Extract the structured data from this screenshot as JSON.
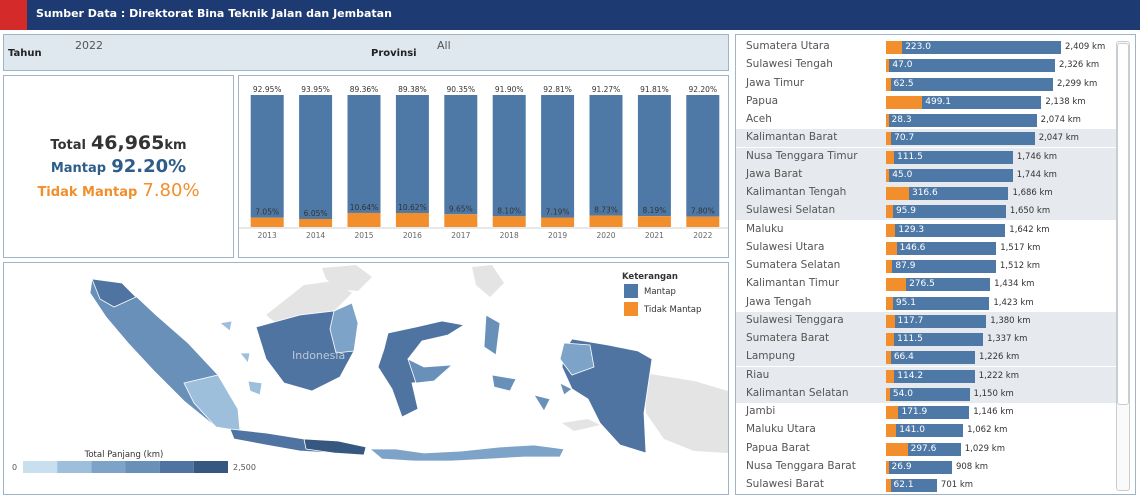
{
  "header": {
    "title": "Sumber Data : Direktorat Bina Teknik Jalan dan Jembatan"
  },
  "filters": {
    "tahun_label": "Tahun",
    "tahun_value": "2022",
    "provinsi_label": "Provinsi",
    "provinsi_value": "All"
  },
  "kpi": {
    "total_label": "Total",
    "total_value": "46,965",
    "total_unit": "km",
    "mantap_label": "Mantap",
    "mantap_value": "92.20%",
    "tidak_label": "Tidak Mantap",
    "tidak_value": "7.80%"
  },
  "colors": {
    "mantap": "#4e79a7",
    "tidak_mantap": "#f28e2b",
    "header": "#1e3a73"
  },
  "chart_data": [
    {
      "type": "bar",
      "categories": [
        "2013",
        "2014",
        "2015",
        "2016",
        "2017",
        "2018",
        "2019",
        "2020",
        "2021",
        "2022"
      ],
      "series": [
        {
          "name": "Mantap",
          "values": [
            92.95,
            93.95,
            89.36,
            89.38,
            90.35,
            91.9,
            92.81,
            91.27,
            91.81,
            92.2
          ],
          "labels": [
            "92.95%",
            "93.95%",
            "89.36%",
            "89.38%",
            "90.35%",
            "91.90%",
            "92.81%",
            "91.27%",
            "91.81%",
            "92.20%"
          ]
        },
        {
          "name": "Tidak Mantap",
          "values": [
            7.05,
            6.05,
            10.64,
            10.62,
            9.65,
            8.1,
            7.19,
            8.73,
            8.19,
            7.8
          ],
          "labels": [
            "7.05%",
            "6.05%",
            "10.64%",
            "10.62%",
            "9.65%",
            "8.10%",
            "7.19%",
            "8.73%",
            "8.19%",
            "7.80%"
          ]
        }
      ]
    },
    {
      "type": "bar",
      "orientation": "horizontal",
      "categories": [
        "Sumatera Utara",
        "Sulawesi Tengah",
        "Jawa Timur",
        "Papua",
        "Aceh",
        "Kalimantan Barat",
        "Nusa Tenggara Timur",
        "Jawa Barat",
        "Kalimantan Tengah",
        "Sulawesi Selatan",
        "Maluku",
        "Sulawesi Utara",
        "Sumatera Selatan",
        "Kalimantan Timur",
        "Jawa Tengah",
        "Sulawesi Tenggara",
        "Sumatera Barat",
        "Lampung",
        "Riau",
        "Kalimantan Selatan",
        "Jambi",
        "Maluku Utara",
        "Papua Barat",
        "Nusa Tenggara Barat",
        "Sulawesi Barat"
      ],
      "totals": [
        2409,
        2326,
        2299,
        2138,
        2074,
        2047,
        1746,
        1744,
        1686,
        1650,
        1642,
        1517,
        1512,
        1434,
        1423,
        1380,
        1337,
        1226,
        1222,
        1150,
        1146,
        1062,
        1029,
        908,
        701
      ],
      "total_labels": [
        "2,409 km",
        "2,326 km",
        "2,299 km",
        "2,138 km",
        "2,074 km",
        "2,047 km",
        "1,746 km",
        "1,744 km",
        "1,686 km",
        "1,650 km",
        "1,642 km",
        "1,517 km",
        "1,512 km",
        "1,434 km",
        "1,423 km",
        "1,380 km",
        "1,337 km",
        "1,226 km",
        "1,222 km",
        "1,150 km",
        "1,146 km",
        "1,062 km",
        "1,029 km",
        "908 km",
        "701 km"
      ],
      "tidak_mantap": [
        223.0,
        47.0,
        62.5,
        499.1,
        28.3,
        70.7,
        111.5,
        45.0,
        316.6,
        95.9,
        129.3,
        146.6,
        87.9,
        276.5,
        95.1,
        117.7,
        111.5,
        66.4,
        114.2,
        54.0,
        171.9,
        141.0,
        297.6,
        26.9,
        62.1
      ],
      "tidak_mantap_labels": [
        "223.0",
        "47.0",
        "62.5",
        "499.1",
        "28.3",
        "70.7",
        "111.5",
        "45.0",
        "316.6",
        "95.9",
        "129.3",
        "146.6",
        "87.9",
        "276.5",
        "95.1",
        "117.7",
        "111.5",
        "66.4",
        "114.2",
        "54.0",
        "171.9",
        "141.0",
        "297.6",
        "26.9",
        "62.1"
      ],
      "shaded_rows": [
        5,
        6,
        7,
        8,
        9,
        15,
        16,
        17,
        18,
        19
      ]
    }
  ],
  "map": {
    "country_label": "Indonesia",
    "legend_title": "Keterangan",
    "legend_items": [
      {
        "label": "Mantap"
      },
      {
        "label": "Tidak Mantap"
      }
    ],
    "scale_title": "Total Panjang (km)",
    "scale_min": "0",
    "scale_max": "2,500",
    "scale_colors": [
      "#c8dff0",
      "#9dbfdc",
      "#7ea3c8",
      "#6890b9",
      "#4f74a2",
      "#36577f"
    ]
  }
}
